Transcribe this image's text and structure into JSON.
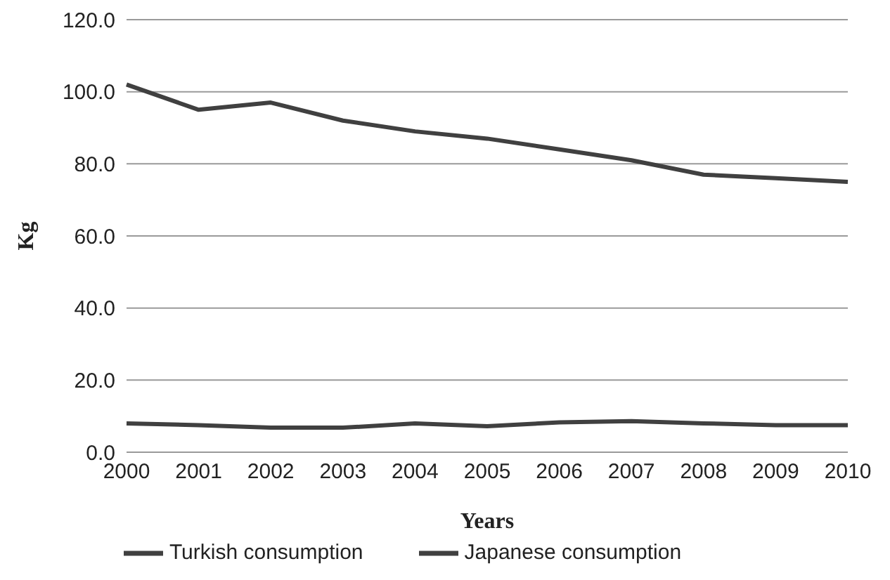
{
  "chart_data": {
    "type": "line",
    "xlabel": "Years",
    "ylabel": "Kg",
    "categories": [
      "2000",
      "2001",
      "2002",
      "2003",
      "2004",
      "2005",
      "2006",
      "2007",
      "2008",
      "2009",
      "2010"
    ],
    "series": [
      {
        "name": "Turkish consumption",
        "color": "#404040",
        "values": [
          102,
          95,
          97,
          92,
          89,
          87,
          84,
          81,
          77,
          76,
          75
        ]
      },
      {
        "name": "Japanese consumption",
        "color": "#404040",
        "values": [
          8,
          7.5,
          6.8,
          6.8,
          8,
          7.2,
          8.3,
          8.6,
          8,
          7.5,
          7.5
        ]
      }
    ],
    "ylim": [
      0,
      120
    ],
    "yticks": [
      {
        "value": 0,
        "label": "0.0"
      },
      {
        "value": 20,
        "label": "20.0"
      },
      {
        "value": 40,
        "label": "40.0"
      },
      {
        "value": 60,
        "label": "60.0"
      },
      {
        "value": 80,
        "label": "80.0"
      },
      {
        "value": 100,
        "label": "100.0"
      },
      {
        "value": 120,
        "label": "120.0"
      }
    ],
    "grid": "y",
    "legend": "bottom",
    "marker": "none",
    "line_style": "solid"
  }
}
